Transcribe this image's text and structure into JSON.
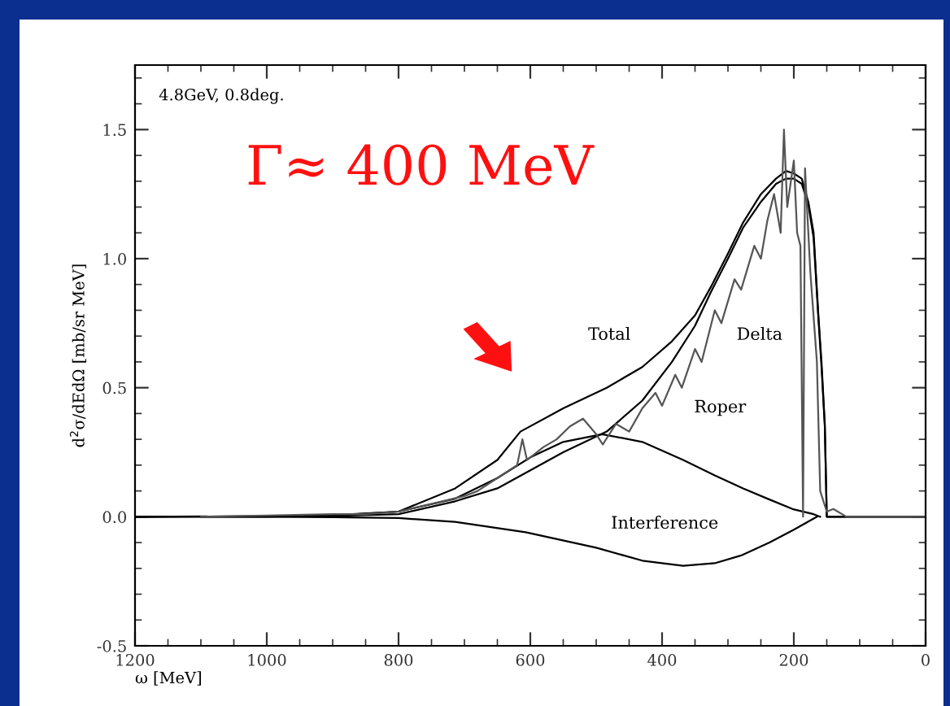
{
  "chart_data": {
    "type": "line",
    "xlabel": "ω [MeV]",
    "ylabel": "d$^{2}$σ/dEdΩ [mb/sr MeV]",
    "xlim": [
      1200,
      0
    ],
    "ylim": [
      -0.5,
      1.75
    ],
    "xticks": [
      1200,
      1000,
      800,
      600,
      400,
      200,
      0
    ],
    "yticks": [
      -0.5,
      {
        "value": 0,
        "label": "0.0"
      },
      0.5,
      {
        "value": 1,
        "label": "1.0"
      },
      1.5
    ],
    "grid": false,
    "legend": false,
    "marker": "none",
    "line_style": "solid",
    "series": [
      {
        "name": "Total",
        "color": "#000000",
        "x": [
          1200,
          1000,
          900,
          800,
          714,
          650,
          615,
          550,
          484,
          430,
          385,
          350,
          326,
          300,
          277,
          250,
          227,
          212,
          200,
          188,
          178,
          170,
          163,
          158,
          153,
          150,
          0
        ],
        "values": [
          0,
          0.002,
          0.006,
          0.02,
          0.11,
          0.22,
          0.33,
          0.42,
          0.5,
          0.58,
          0.68,
          0.78,
          0.89,
          1.02,
          1.14,
          1.25,
          1.31,
          1.34,
          1.33,
          1.31,
          1.22,
          1.1,
          0.79,
          0.6,
          0.36,
          0,
          0
        ]
      },
      {
        "name": "Delta",
        "color": "#000000",
        "x": [
          1200,
          1000,
          900,
          800,
          714,
          650,
          600,
          550,
          484,
          430,
          385,
          350,
          326,
          300,
          277,
          250,
          227,
          212,
          200,
          188,
          178,
          170,
          163,
          158,
          153,
          150,
          0
        ],
        "values": [
          0,
          0.001,
          0.003,
          0.01,
          0.06,
          0.11,
          0.18,
          0.25,
          0.33,
          0.45,
          0.6,
          0.74,
          0.87,
          1.0,
          1.12,
          1.22,
          1.29,
          1.31,
          1.31,
          1.29,
          1.21,
          1.08,
          0.78,
          0.58,
          0.35,
          0,
          0
        ]
      },
      {
        "name": "Roper",
        "color": "#000000",
        "x": [
          1200,
          1000,
          900,
          800,
          714,
          650,
          600,
          550,
          491,
          430,
          368,
          320,
          277,
          240,
          202,
          170,
          160
        ],
        "values": [
          0,
          0.001,
          0.005,
          0.02,
          0.07,
          0.15,
          0.23,
          0.29,
          0.32,
          0.29,
          0.22,
          0.16,
          0.11,
          0.07,
          0.03,
          0.01,
          0
        ]
      },
      {
        "name": "Interference",
        "color": "#000000",
        "x": [
          1100,
          1000,
          900,
          800,
          714,
          607,
          500,
          430,
          368,
          320,
          280,
          237,
          200,
          165
        ],
        "values": [
          0,
          0,
          -0.002,
          -0.005,
          -0.02,
          -0.06,
          -0.12,
          -0.17,
          -0.19,
          -0.18,
          -0.15,
          -0.1,
          -0.05,
          0
        ]
      },
      {
        "color": "#555555",
        "x": [
          1100,
          1000,
          900,
          850,
          800,
          750,
          700,
          680,
          650,
          620,
          612,
          605,
          580,
          560,
          540,
          520,
          500,
          490,
          470,
          450,
          430,
          410,
          400,
          380,
          370,
          350,
          340,
          320,
          310,
          290,
          280,
          260,
          250,
          240,
          230,
          220,
          215,
          210,
          200,
          195,
          190,
          186,
          183,
          180,
          175,
          165,
          160,
          150,
          140,
          120,
          0
        ],
        "values": [
          0,
          0.005,
          0.01,
          0.01,
          0.02,
          0.05,
          0.08,
          0.1,
          0.15,
          0.2,
          0.3,
          0.22,
          0.27,
          0.3,
          0.35,
          0.38,
          0.32,
          0.28,
          0.36,
          0.33,
          0.42,
          0.48,
          0.43,
          0.55,
          0.5,
          0.65,
          0.6,
          0.8,
          0.75,
          0.92,
          0.88,
          1.05,
          1.0,
          1.15,
          1.25,
          1.1,
          1.5,
          1.2,
          1.38,
          1.1,
          1.05,
          0.0,
          1.35,
          1.2,
          0.95,
          0.6,
          0.1,
          0.02,
          0.03,
          0,
          0
        ]
      }
    ],
    "annotations": [
      "4.8GeV, 0.8deg.",
      "Γ≈ 400 MeV"
    ]
  }
}
